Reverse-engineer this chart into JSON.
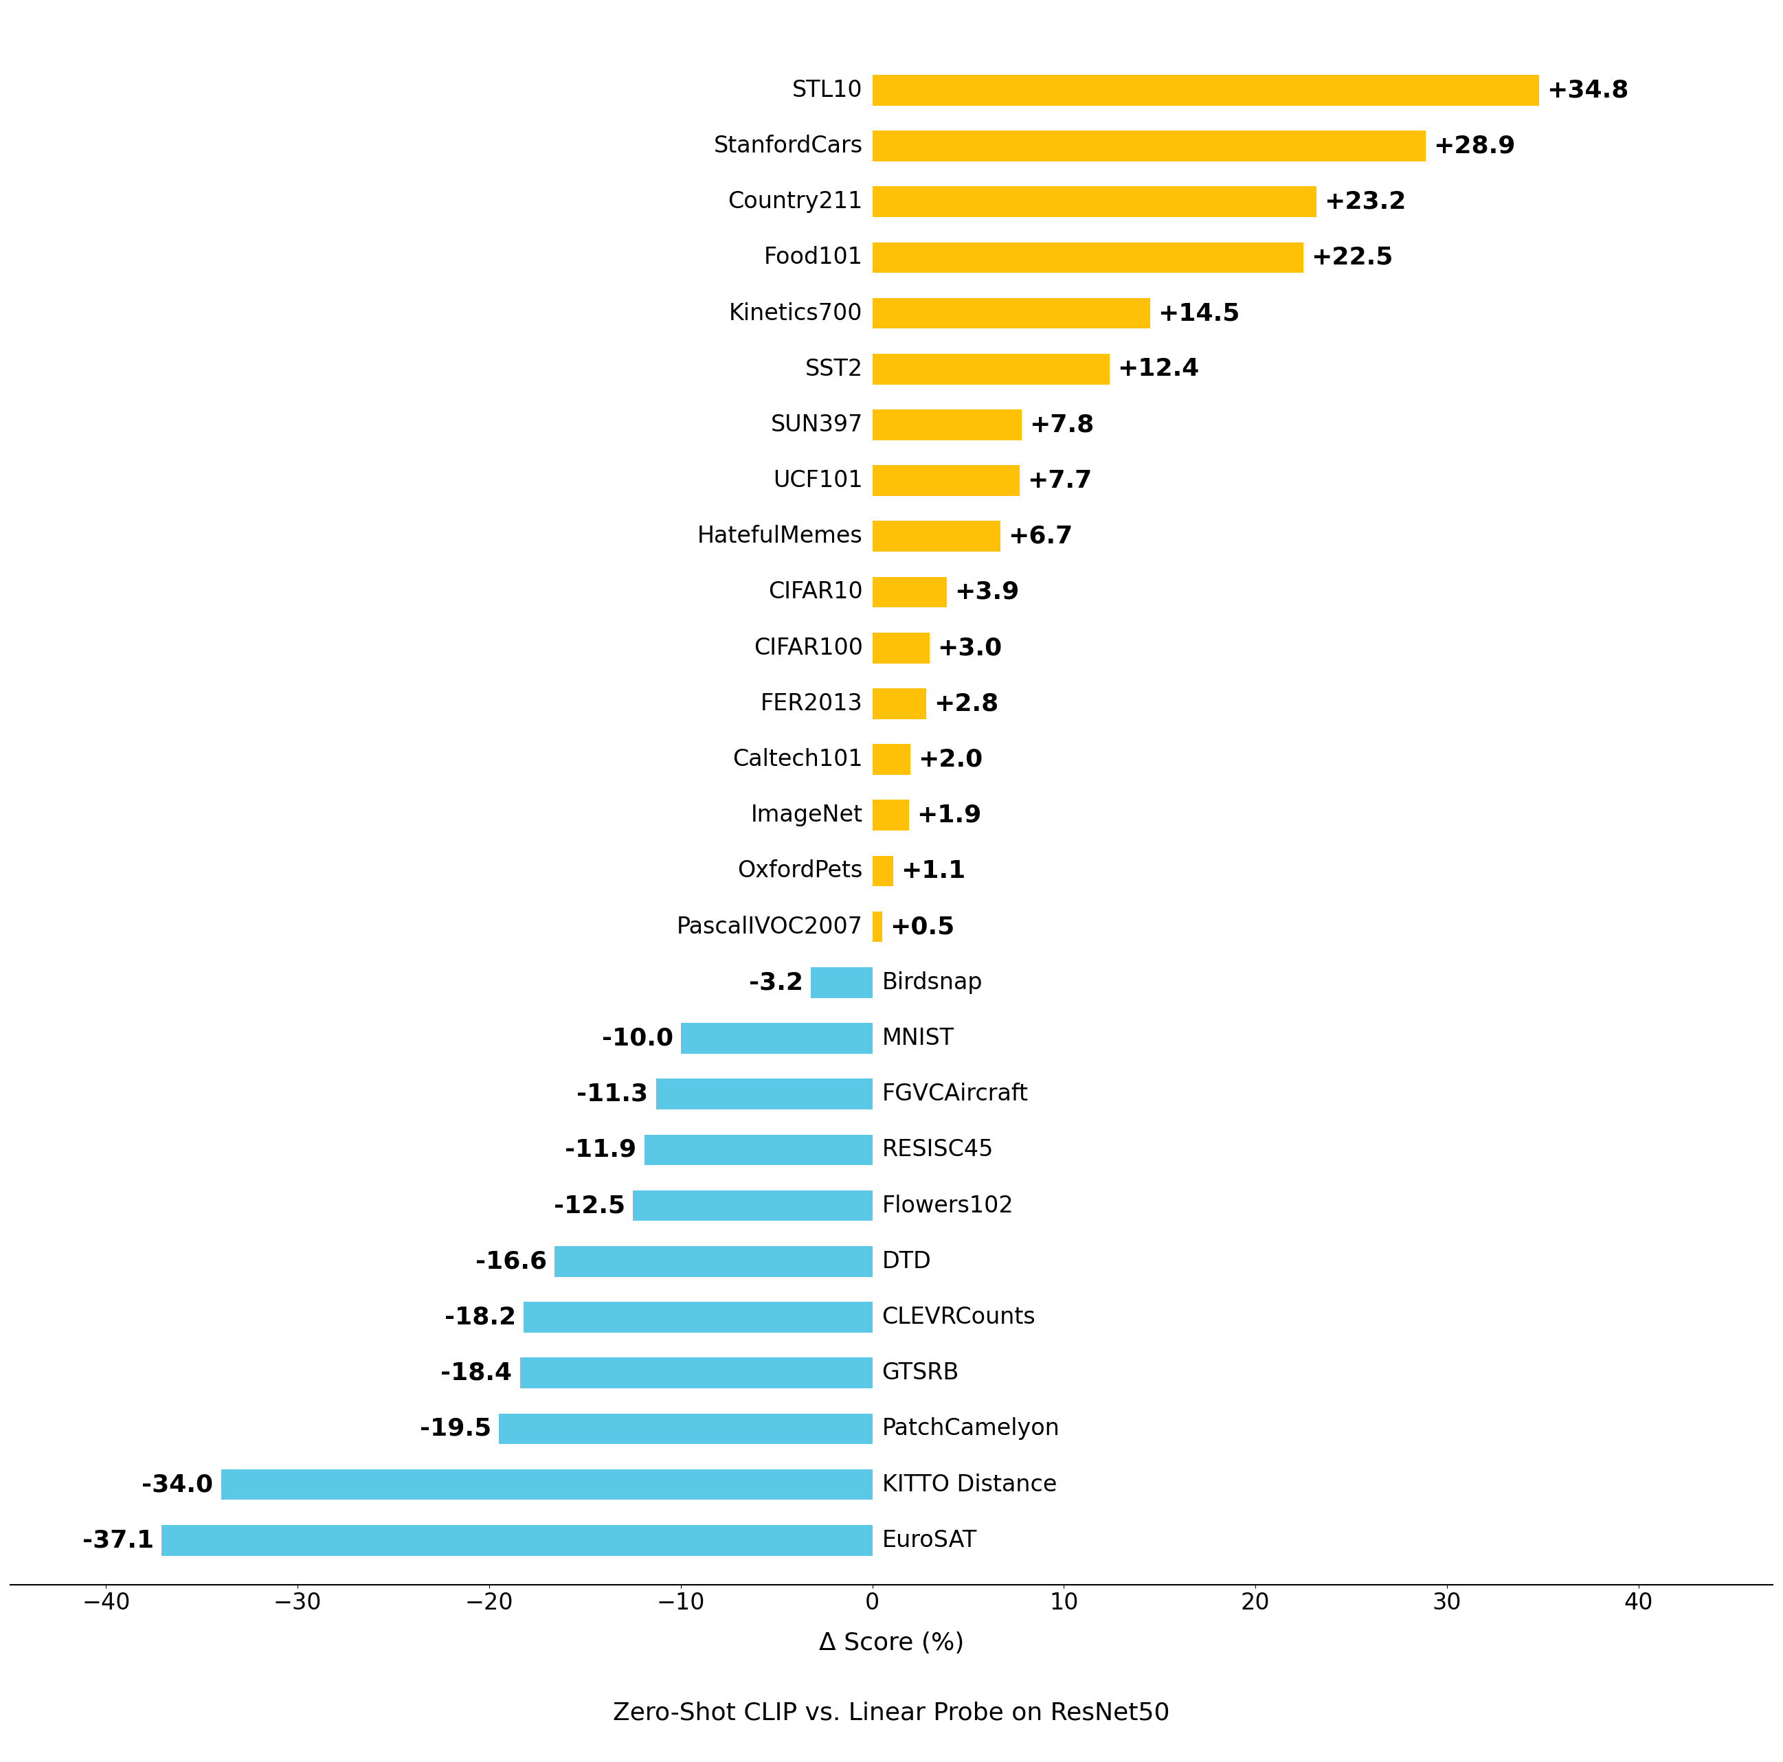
{
  "categories": [
    "STL10",
    "StanfordCars",
    "Country211",
    "Food101",
    "Kinetics700",
    "SST2",
    "SUN397",
    "UCF101",
    "HatefulMemes",
    "CIFAR10",
    "CIFAR100",
    "FER2013",
    "Caltech101",
    "ImageNet",
    "OxfordPets",
    "PascalIVOC2007",
    "Birdsnap",
    "MNIST",
    "FGVCAircraft",
    "RESISC45",
    "Flowers102",
    "DTD",
    "CLEVRCounts",
    "GTSRB",
    "PatchCamelyon",
    "KITTO Distance",
    "EuroSAT"
  ],
  "values": [
    34.8,
    28.9,
    23.2,
    22.5,
    14.5,
    12.4,
    7.8,
    7.7,
    6.7,
    3.9,
    3.0,
    2.8,
    2.0,
    1.9,
    1.1,
    0.5,
    -3.2,
    -10.0,
    -11.3,
    -11.9,
    -12.5,
    -16.6,
    -18.2,
    -18.4,
    -19.5,
    -34.0,
    -37.1
  ],
  "positive_color": "#FFC107",
  "negative_color": "#5BC8E8",
  "background_color": "#FFFFFF",
  "xlabel": "Δ Score (%)",
  "title": "Zero-Shot CLIP vs. Linear Probe on ResNet50",
  "xlim": [
    -45,
    47
  ],
  "xticks": [
    -40,
    -30,
    -20,
    -10,
    0,
    10,
    20,
    30,
    40
  ],
  "label_fontsize": 26,
  "tick_fontsize": 24,
  "title_fontsize": 26,
  "xlabel_fontsize": 26,
  "cat_fontsize": 24,
  "bar_height": 0.55
}
